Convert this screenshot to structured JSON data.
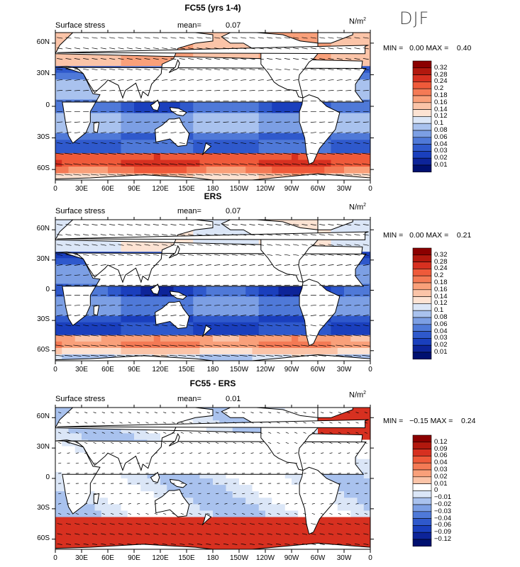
{
  "season": "DJF",
  "panels": [
    {
      "title": "FC55 (yrs 1-4)",
      "field": "Surface stress",
      "mean_label": "mean=",
      "mean": "0.07",
      "units": "N/m",
      "units_sup": "2",
      "min_label": "MIN =",
      "min": "0.00",
      "max_label": "MAX =",
      "max": "0.40",
      "colorbar": [
        "0.32",
        "0.28",
        "0.24",
        "0.2",
        "0.18",
        "0.16",
        "0.14",
        "0.12",
        "0.1",
        "0.08",
        "0.06",
        "0.04",
        "0.03",
        "0.02",
        "0.01"
      ],
      "palette": "positive"
    },
    {
      "title": "ERS",
      "field": "Surface stress",
      "mean_label": "mean=",
      "mean": "0.07",
      "units": "N/m",
      "units_sup": "2",
      "min_label": "MIN =",
      "min": "0.00",
      "max_label": "MAX =",
      "max": "0.21",
      "colorbar": [
        "0.32",
        "0.28",
        "0.24",
        "0.2",
        "0.18",
        "0.16",
        "0.14",
        "0.12",
        "0.1",
        "0.08",
        "0.06",
        "0.04",
        "0.03",
        "0.02",
        "0.01"
      ],
      "palette": "positive"
    },
    {
      "title": "FC55 - ERS",
      "field": "Surface stress",
      "mean_label": "mean=",
      "mean": "0.01",
      "units": "N/m",
      "units_sup": "2",
      "min_label": "MIN =",
      "min": "−0.15",
      "max_label": "MAX =",
      "max": "0.24",
      "colorbar": [
        "0.12",
        "0.09",
        "0.06",
        "0.04",
        "0.03",
        "0.02",
        "0.01",
        "0",
        "−0.01",
        "−0.02",
        "−0.03",
        "−0.04",
        "−0.06",
        "−0.09",
        "−0.12"
      ],
      "palette": "diverging"
    }
  ],
  "lon_ticks": [
    "0",
    "30E",
    "60E",
    "90E",
    "120E",
    "150E",
    "180",
    "150W",
    "120W",
    "90W",
    "60W",
    "30W",
    "0"
  ],
  "lat_ticks": [
    "60N",
    "30N",
    "0",
    "30S",
    "60S"
  ],
  "colors": {
    "positive": [
      "#8b0000",
      "#b2180e",
      "#d73020",
      "#ef5a3a",
      "#f47a55",
      "#f9a07a",
      "#fbc4a8",
      "#fde3d3",
      "#dbe6f7",
      "#a9c2ee",
      "#7c9fe4",
      "#4f79d8",
      "#2f59cc",
      "#1a3fbd",
      "#0d2499",
      "#001070"
    ],
    "diverging": [
      "#8b0000",
      "#b2180e",
      "#d73020",
      "#ef5a3a",
      "#f47a55",
      "#f9a07a",
      "#fbc4a8",
      "#ffffff",
      "#dbe6f7",
      "#a9c2ee",
      "#7c9fe4",
      "#4f79d8",
      "#2f59cc",
      "#1a3fbd",
      "#0d2499",
      "#001070"
    ],
    "land": "#ffffff"
  }
}
